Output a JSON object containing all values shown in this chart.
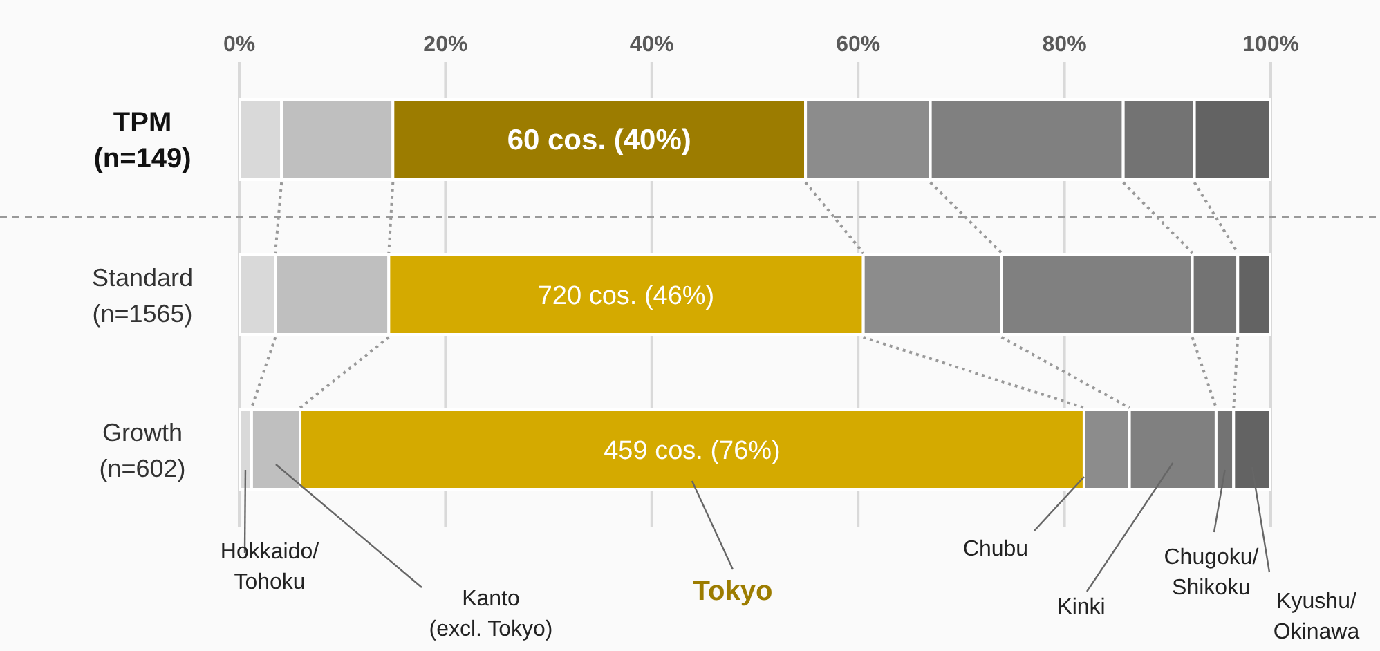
{
  "chart_data": {
    "type": "bar",
    "orientation": "horizontal",
    "stacked": true,
    "categories": [
      "TPM\n(n=149)",
      "Standard\n(n=1565)",
      "Growth\n(n=602)"
    ],
    "series": [
      {
        "name": "Hokkaido/\nTohoku",
        "color": "#d9d9d9",
        "values": [
          4.1,
          3.5,
          1.2
        ]
      },
      {
        "name": "Kanto\n(excl. Tokyo)",
        "color": "#bfbfbf",
        "values": [
          10.8,
          11.0,
          4.7
        ]
      },
      {
        "name": "Tokyo",
        "color": "#d4aa00",
        "colors": [
          "#9c7c00",
          "#d4aa00",
          "#d4aa00"
        ],
        "values": [
          40,
          46,
          76
        ],
        "value_labels": [
          "60 cos. (40%)",
          "720 cos. (46%)",
          "459 cos. (76%)"
        ]
      },
      {
        "name": "Chubu",
        "color": "#8c8c8c",
        "values": [
          12.1,
          13.4,
          4.4
        ]
      },
      {
        "name": "Kinki",
        "color": "#808080",
        "values": [
          18.7,
          18.5,
          8.4
        ]
      },
      {
        "name": "Chugoku/\nShikoku",
        "color": "#737373",
        "values": [
          6.9,
          4.4,
          1.7
        ]
      },
      {
        "name": "Kyushu/\nOkinawa",
        "color": "#636363",
        "values": [
          7.4,
          3.2,
          3.6
        ]
      }
    ],
    "xlim": [
      0,
      100
    ],
    "xticks": [
      {
        "value": 0,
        "label": "0%"
      },
      {
        "value": 20,
        "label": "20%"
      },
      {
        "value": 40,
        "label": "40%"
      },
      {
        "value": 60,
        "label": "60%"
      },
      {
        "value": 80,
        "label": "80%"
      },
      {
        "value": 100,
        "label": "100%"
      }
    ],
    "grid": "x",
    "legend": "bottom"
  }
}
